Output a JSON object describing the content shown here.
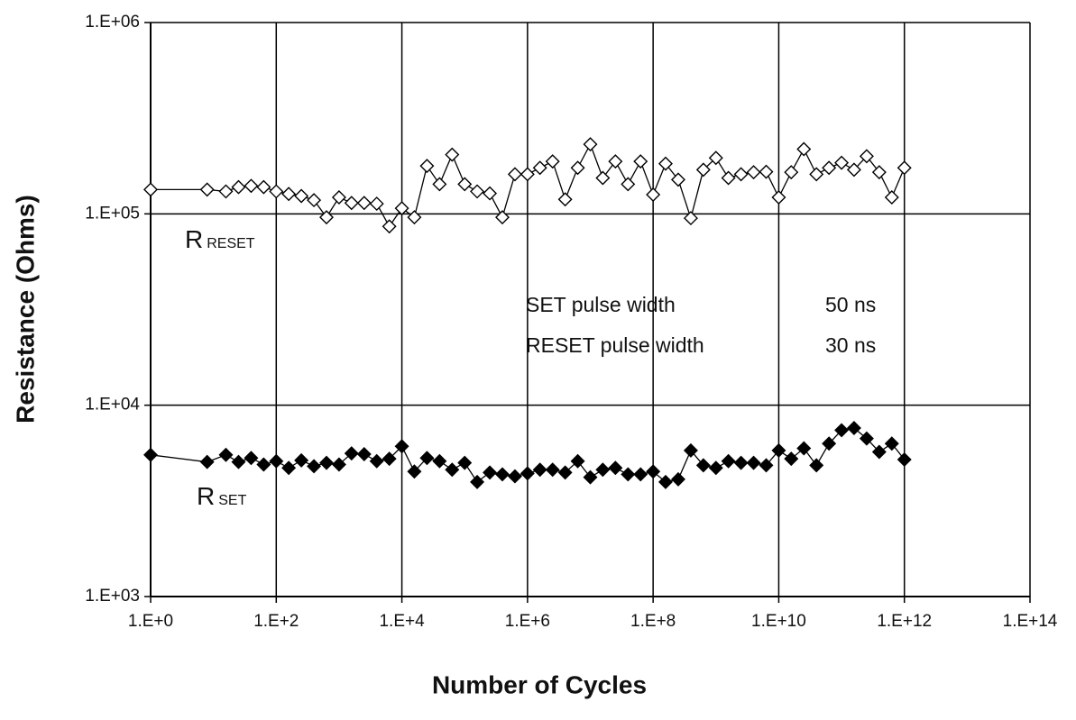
{
  "chart_data": {
    "type": "line",
    "xlabel": "Number of Cycles",
    "ylabel": "Resistance (Ohms)",
    "xscale": "log",
    "yscale": "log",
    "grid": true,
    "xlim": [
      1,
      100000000000000.0
    ],
    "ylim": [
      1000.0,
      1000000.0
    ],
    "xticks": [
      {
        "value": 1,
        "label": "1.E+0"
      },
      {
        "value": 100.0,
        "label": "1.E+2"
      },
      {
        "value": 10000.0,
        "label": "1.E+4"
      },
      {
        "value": 1000000.0,
        "label": "1.E+6"
      },
      {
        "value": 100000000.0,
        "label": "1.E+8"
      },
      {
        "value": 10000000000.0,
        "label": "1.E+10"
      },
      {
        "value": 1000000000000.0,
        "label": "1.E+12"
      },
      {
        "value": 100000000000000.0,
        "label": "1.E+14"
      }
    ],
    "yticks": [
      {
        "value": 1000.0,
        "label": "1.E+03"
      },
      {
        "value": 10000.0,
        "label": "1.E+04"
      },
      {
        "value": 100000.0,
        "label": "1.E+05"
      },
      {
        "value": 1000000.0,
        "label": "1.E+06"
      }
    ],
    "x": [
      1,
      7.94,
      15.8,
      25.1,
      39.8,
      63.1,
      100.0,
      158.0,
      251.0,
      398.0,
      631.0,
      1000.0,
      1580.0,
      2510.0,
      3980.0,
      6310.0,
      10000.0,
      15800.0,
      25100.0,
      39800.0,
      63100.0,
      100000.0,
      158000.0,
      251000.0,
      398000.0,
      631000.0,
      1000000.0,
      1580000.0,
      2510000.0,
      3980000.0,
      6310000.0,
      10000000.0,
      15800000.0,
      25100000.0,
      39800000.0,
      63100000.0,
      100000000.0,
      158000000.0,
      251000000.0,
      398000000.0,
      631000000.0,
      1000000000.0,
      1580000000.0,
      2510000000.0,
      3980000000.0,
      6310000000.0,
      10000000000.0,
      15800000000.0,
      25100000000.0,
      39800000000.0,
      63100000000.0,
      100000000000.0,
      158000000000.0,
      251000000000.0,
      398000000000.0,
      631000000000.0,
      1000000000000.0
    ],
    "series": [
      {
        "label": "R",
        "label_sub": "RESET",
        "color": "#000000",
        "marker": "open-diamond",
        "values": [
          134000,
          134000,
          131000,
          138000,
          140000,
          138000,
          131000,
          127000,
          124000,
          118000,
          96000,
          122000,
          114000,
          114000,
          113000,
          86000,
          107000,
          96000,
          178000,
          143000,
          204000,
          143000,
          131000,
          128000,
          96000,
          161000,
          161000,
          174000,
          188000,
          119000,
          174000,
          231000,
          154000,
          188000,
          143000,
          188000,
          126000,
          183000,
          151000,
          95000,
          170000,
          196000,
          154000,
          161000,
          165000,
          166000,
          122000,
          165000,
          218000,
          161000,
          174000,
          185000,
          170000,
          200000,
          165000,
          122000,
          174000
        ]
      },
      {
        "label": "R",
        "label_sub": "SET",
        "color": "#000000",
        "marker": "filled-diamond",
        "values": [
          5500,
          5050,
          5500,
          5050,
          5300,
          4900,
          5100,
          4700,
          5150,
          4800,
          5000,
          4900,
          5600,
          5550,
          5100,
          5250,
          6100,
          4500,
          5300,
          5100,
          4600,
          5000,
          3970,
          4450,
          4350,
          4250,
          4400,
          4600,
          4600,
          4450,
          5100,
          4200,
          4600,
          4700,
          4350,
          4350,
          4500,
          3970,
          4100,
          5800,
          4850,
          4700,
          5100,
          5000,
          5000,
          4850,
          5800,
          5250,
          5950,
          4850,
          6300,
          7400,
          7600,
          6700,
          5700,
          6300,
          5200
        ]
      }
    ],
    "annotation_table": [
      [
        "SET pulse width",
        "50 ns"
      ],
      [
        "RESET pulse width",
        "30 ns"
      ]
    ]
  }
}
